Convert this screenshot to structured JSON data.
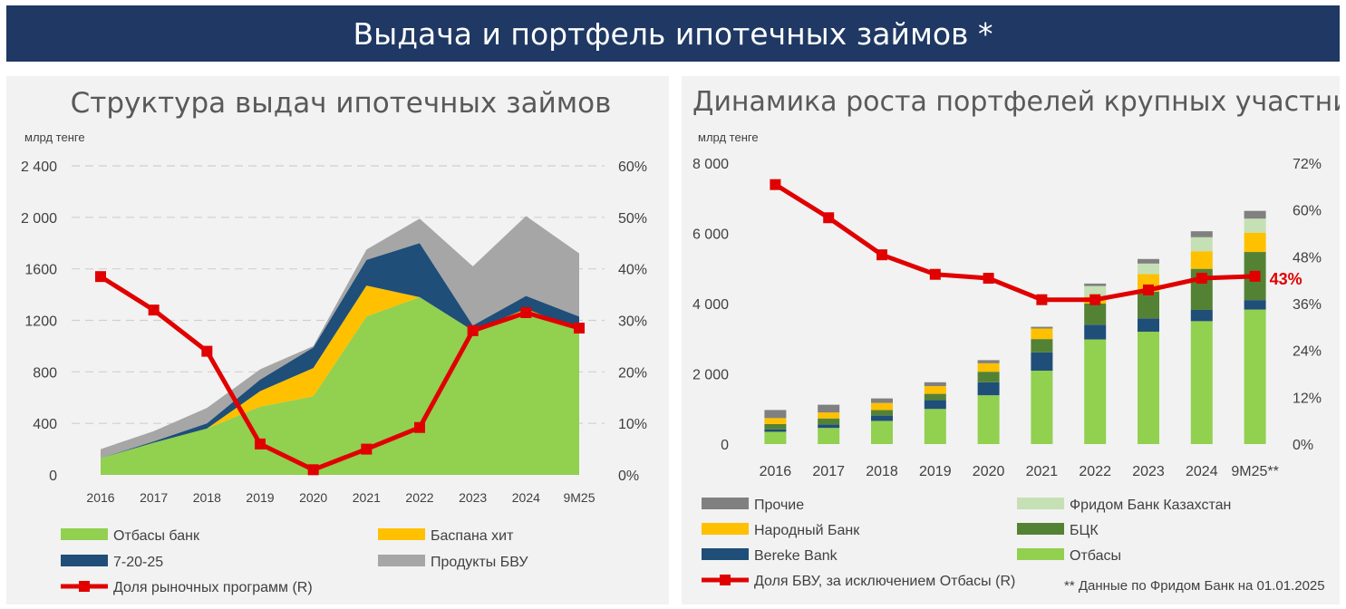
{
  "page": {
    "title": "Выдача и портфель ипотечных займов *"
  },
  "colors": {
    "otbasy": "#92d050",
    "baspana": "#ffc000",
    "p72025": "#1f4e79",
    "bvu": "#a6a6a6",
    "line": "#e00000",
    "prochie": "#808080",
    "freedom": "#c5e0b4",
    "narodny": "#ffc000",
    "bck": "#548235",
    "bereke": "#1f4e79",
    "otbasy_r": "#92d050"
  },
  "chart_data": [
    {
      "type": "area",
      "title": "Структура выдач ипотечных займов",
      "unit_label": "млрд тенге",
      "categories": [
        "2016",
        "2017",
        "2018",
        "2019",
        "2020",
        "2021",
        "2022",
        "2023",
        "2024",
        "9M25"
      ],
      "ylim": [
        0,
        2400
      ],
      "y_ticks": [
        "0",
        "400",
        "800",
        "1200",
        "1600",
        "2 000",
        "2 400"
      ],
      "y2lim": [
        0,
        0.6
      ],
      "y2_ticks": [
        "0%",
        "10%",
        "20%",
        "30%",
        "40%",
        "50%",
        "60%"
      ],
      "series": [
        {
          "name": "Отбасы банк",
          "values": [
            130,
            250,
            360,
            530,
            610,
            1230,
            1380,
            1120,
            1270,
            1130
          ]
        },
        {
          "name": "Баспана хит",
          "values": [
            0,
            0,
            0,
            120,
            220,
            240,
            0,
            0,
            20,
            0
          ]
        },
        {
          "name": "7-20-25",
          "values": [
            0,
            10,
            40,
            90,
            160,
            200,
            420,
            40,
            100,
            100
          ]
        },
        {
          "name": "Продукты БВУ",
          "values": [
            70,
            80,
            120,
            80,
            10,
            80,
            190,
            460,
            620,
            490
          ]
        }
      ],
      "line": {
        "name": "Доля рыночных программ (R)",
        "values": [
          0.385,
          0.32,
          0.24,
          0.06,
          0.01,
          0.05,
          0.092,
          0.28,
          0.315,
          0.285
        ]
      },
      "legend": [
        "Отбасы банк",
        "Баспана хит",
        "7-20-25",
        "Продукты БВУ",
        "Доля рыночных программ (R)"
      ],
      "legend_position": "bottom",
      "grid": true
    },
    {
      "type": "bar",
      "title": "Динамика роста портфелей крупных участников рынка",
      "unit_label": "млрд тенге",
      "categories": [
        "2016",
        "2017",
        "2018",
        "2019",
        "2020",
        "2021",
        "2022",
        "2023",
        "2024",
        "9M25**"
      ],
      "ylim": [
        0,
        8000
      ],
      "y_ticks": [
        "0",
        "2 000",
        "4 000",
        "6 000",
        "8 000"
      ],
      "y2lim": [
        0,
        0.72
      ],
      "y2_ticks": [
        "0%",
        "12%",
        "24%",
        "36%",
        "48%",
        "60%",
        "72%"
      ],
      "series": [
        {
          "name": "Отбасы",
          "values": [
            350,
            460,
            660,
            1000,
            1390,
            2090,
            2980,
            3200,
            3500,
            3830
          ]
        },
        {
          "name": "Bereke Bank",
          "values": [
            70,
            100,
            150,
            250,
            370,
            520,
            420,
            380,
            320,
            270
          ]
        },
        {
          "name": "БЦК",
          "values": [
            150,
            170,
            160,
            180,
            300,
            380,
            600,
            760,
            1170,
            1370
          ]
        },
        {
          "name": "Народный Банк",
          "values": [
            170,
            170,
            200,
            220,
            240,
            300,
            200,
            500,
            500,
            550
          ]
        },
        {
          "name": "Фридом Банк Казахстан",
          "values": [
            0,
            0,
            0,
            0,
            0,
            0,
            300,
            300,
            400,
            400
          ]
        },
        {
          "name": "Прочие",
          "values": [
            230,
            220,
            130,
            110,
            90,
            50,
            70,
            130,
            170,
            220
          ]
        }
      ],
      "line": {
        "name": "Доля  БВУ, за исключением Отбасы (R)",
        "values": [
          0.665,
          0.58,
          0.485,
          0.435,
          0.425,
          0.37,
          0.37,
          0.395,
          0.425,
          0.43
        ]
      },
      "last_label": "43%",
      "legend": [
        "Прочие",
        "Фридом Банк Казахстан",
        "Народный Банк",
        "БЦК",
        "Bereke Bank",
        "Отбасы",
        "Доля  БВУ, за исключением Отбасы (R)"
      ],
      "legend_position": "bottom",
      "grid": false,
      "footnote": "** Данные по Фридом Банк на 01.01.2025"
    }
  ]
}
